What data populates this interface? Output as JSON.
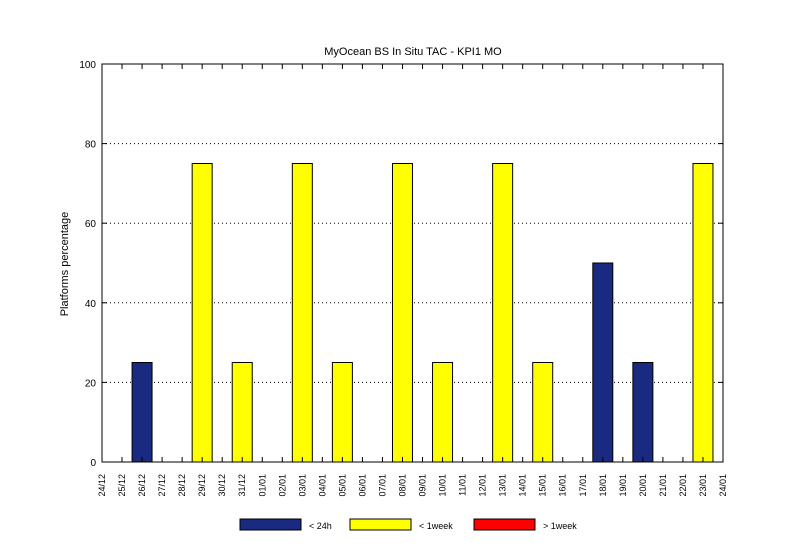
{
  "chart_data": {
    "type": "bar",
    "title": "MyOcean  BS In Situ TAC - KPI1  MO",
    "ylabel": "Platforms percentage",
    "xlabel": "",
    "ylim": [
      0,
      100
    ],
    "yticks": [
      "0",
      "20",
      "40",
      "60",
      "80",
      "100"
    ],
    "grid": "horizontal dotted",
    "legend_position": "bottom",
    "categories": [
      "24/12",
      "25/12",
      "26/12",
      "27/12",
      "28/12",
      "29/12",
      "30/12",
      "31/12",
      "01/01",
      "02/01",
      "03/01",
      "04/01",
      "05/01",
      "06/01",
      "07/01",
      "08/01",
      "09/01",
      "10/01",
      "11/01",
      "12/01",
      "13/01",
      "14/01",
      "15/01",
      "16/01",
      "17/01",
      "18/01",
      "19/01",
      "20/01",
      "21/01",
      "22/01",
      "23/01",
      "24/01"
    ],
    "series": [
      {
        "name": "< 24h",
        "color": "#1a2a80",
        "values": [
          0,
          0,
          25,
          0,
          0,
          0,
          0,
          0,
          0,
          0,
          0,
          0,
          0,
          0,
          0,
          0,
          0,
          0,
          0,
          0,
          0,
          0,
          0,
          0,
          0,
          50,
          0,
          25,
          0,
          0,
          0,
          0
        ]
      },
      {
        "name": "< 1week",
        "color": "#ffff00",
        "values": [
          0,
          0,
          0,
          0,
          0,
          75,
          0,
          25,
          0,
          0,
          75,
          0,
          25,
          0,
          0,
          75,
          0,
          25,
          0,
          0,
          75,
          0,
          25,
          0,
          0,
          0,
          0,
          0,
          0,
          0,
          75,
          0
        ]
      },
      {
        "name": "> 1week",
        "color": "#ff0000",
        "values": [
          0,
          0,
          0,
          0,
          0,
          0,
          0,
          0,
          0,
          0,
          0,
          0,
          0,
          0,
          0,
          0,
          0,
          0,
          0,
          0,
          0,
          0,
          0,
          0,
          0,
          0,
          0,
          0,
          0,
          0,
          0,
          0
        ]
      }
    ]
  }
}
